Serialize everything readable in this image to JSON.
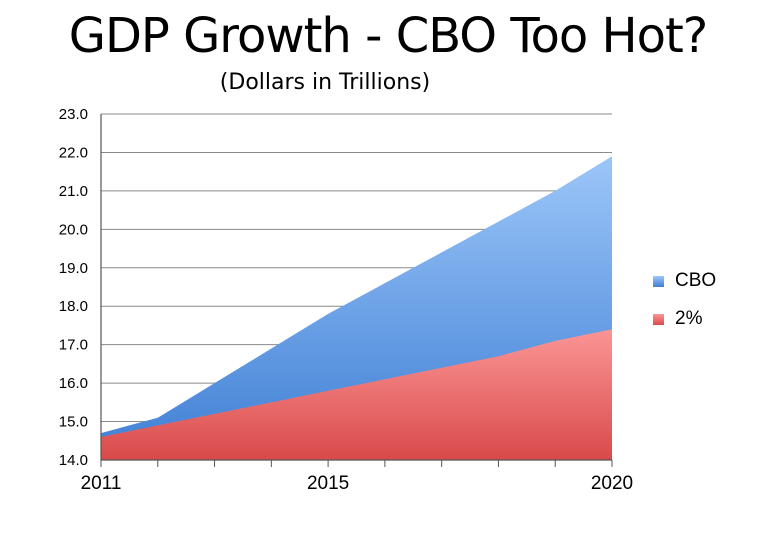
{
  "chart_data": {
    "type": "area",
    "title": "GDP Growth - CBO Too Hot?",
    "subtitle": "(Dollars in Trillions)",
    "xlabel": "",
    "ylabel": "",
    "x": [
      2011,
      2012,
      2013,
      2014,
      2015,
      2016,
      2017,
      2018,
      2019,
      2020
    ],
    "xticks": [
      "2011",
      "2015",
      "2020"
    ],
    "ylim": [
      14.0,
      23.0
    ],
    "yticks": [
      "14.0",
      "15.0",
      "16.0",
      "17.0",
      "18.0",
      "19.0",
      "20.0",
      "21.0",
      "22.0",
      "23.0"
    ],
    "grid": true,
    "legend_position": "right",
    "series": [
      {
        "name": "CBO",
        "color": "#5b9be6",
        "values": [
          14.7,
          15.1,
          16.0,
          16.9,
          17.8,
          18.6,
          19.4,
          20.2,
          21.0,
          21.9
        ]
      },
      {
        "name": "2%",
        "color": "#ee6464",
        "values": [
          14.6,
          14.9,
          15.2,
          15.5,
          15.8,
          16.1,
          16.4,
          16.7,
          17.1,
          17.4
        ]
      }
    ]
  }
}
